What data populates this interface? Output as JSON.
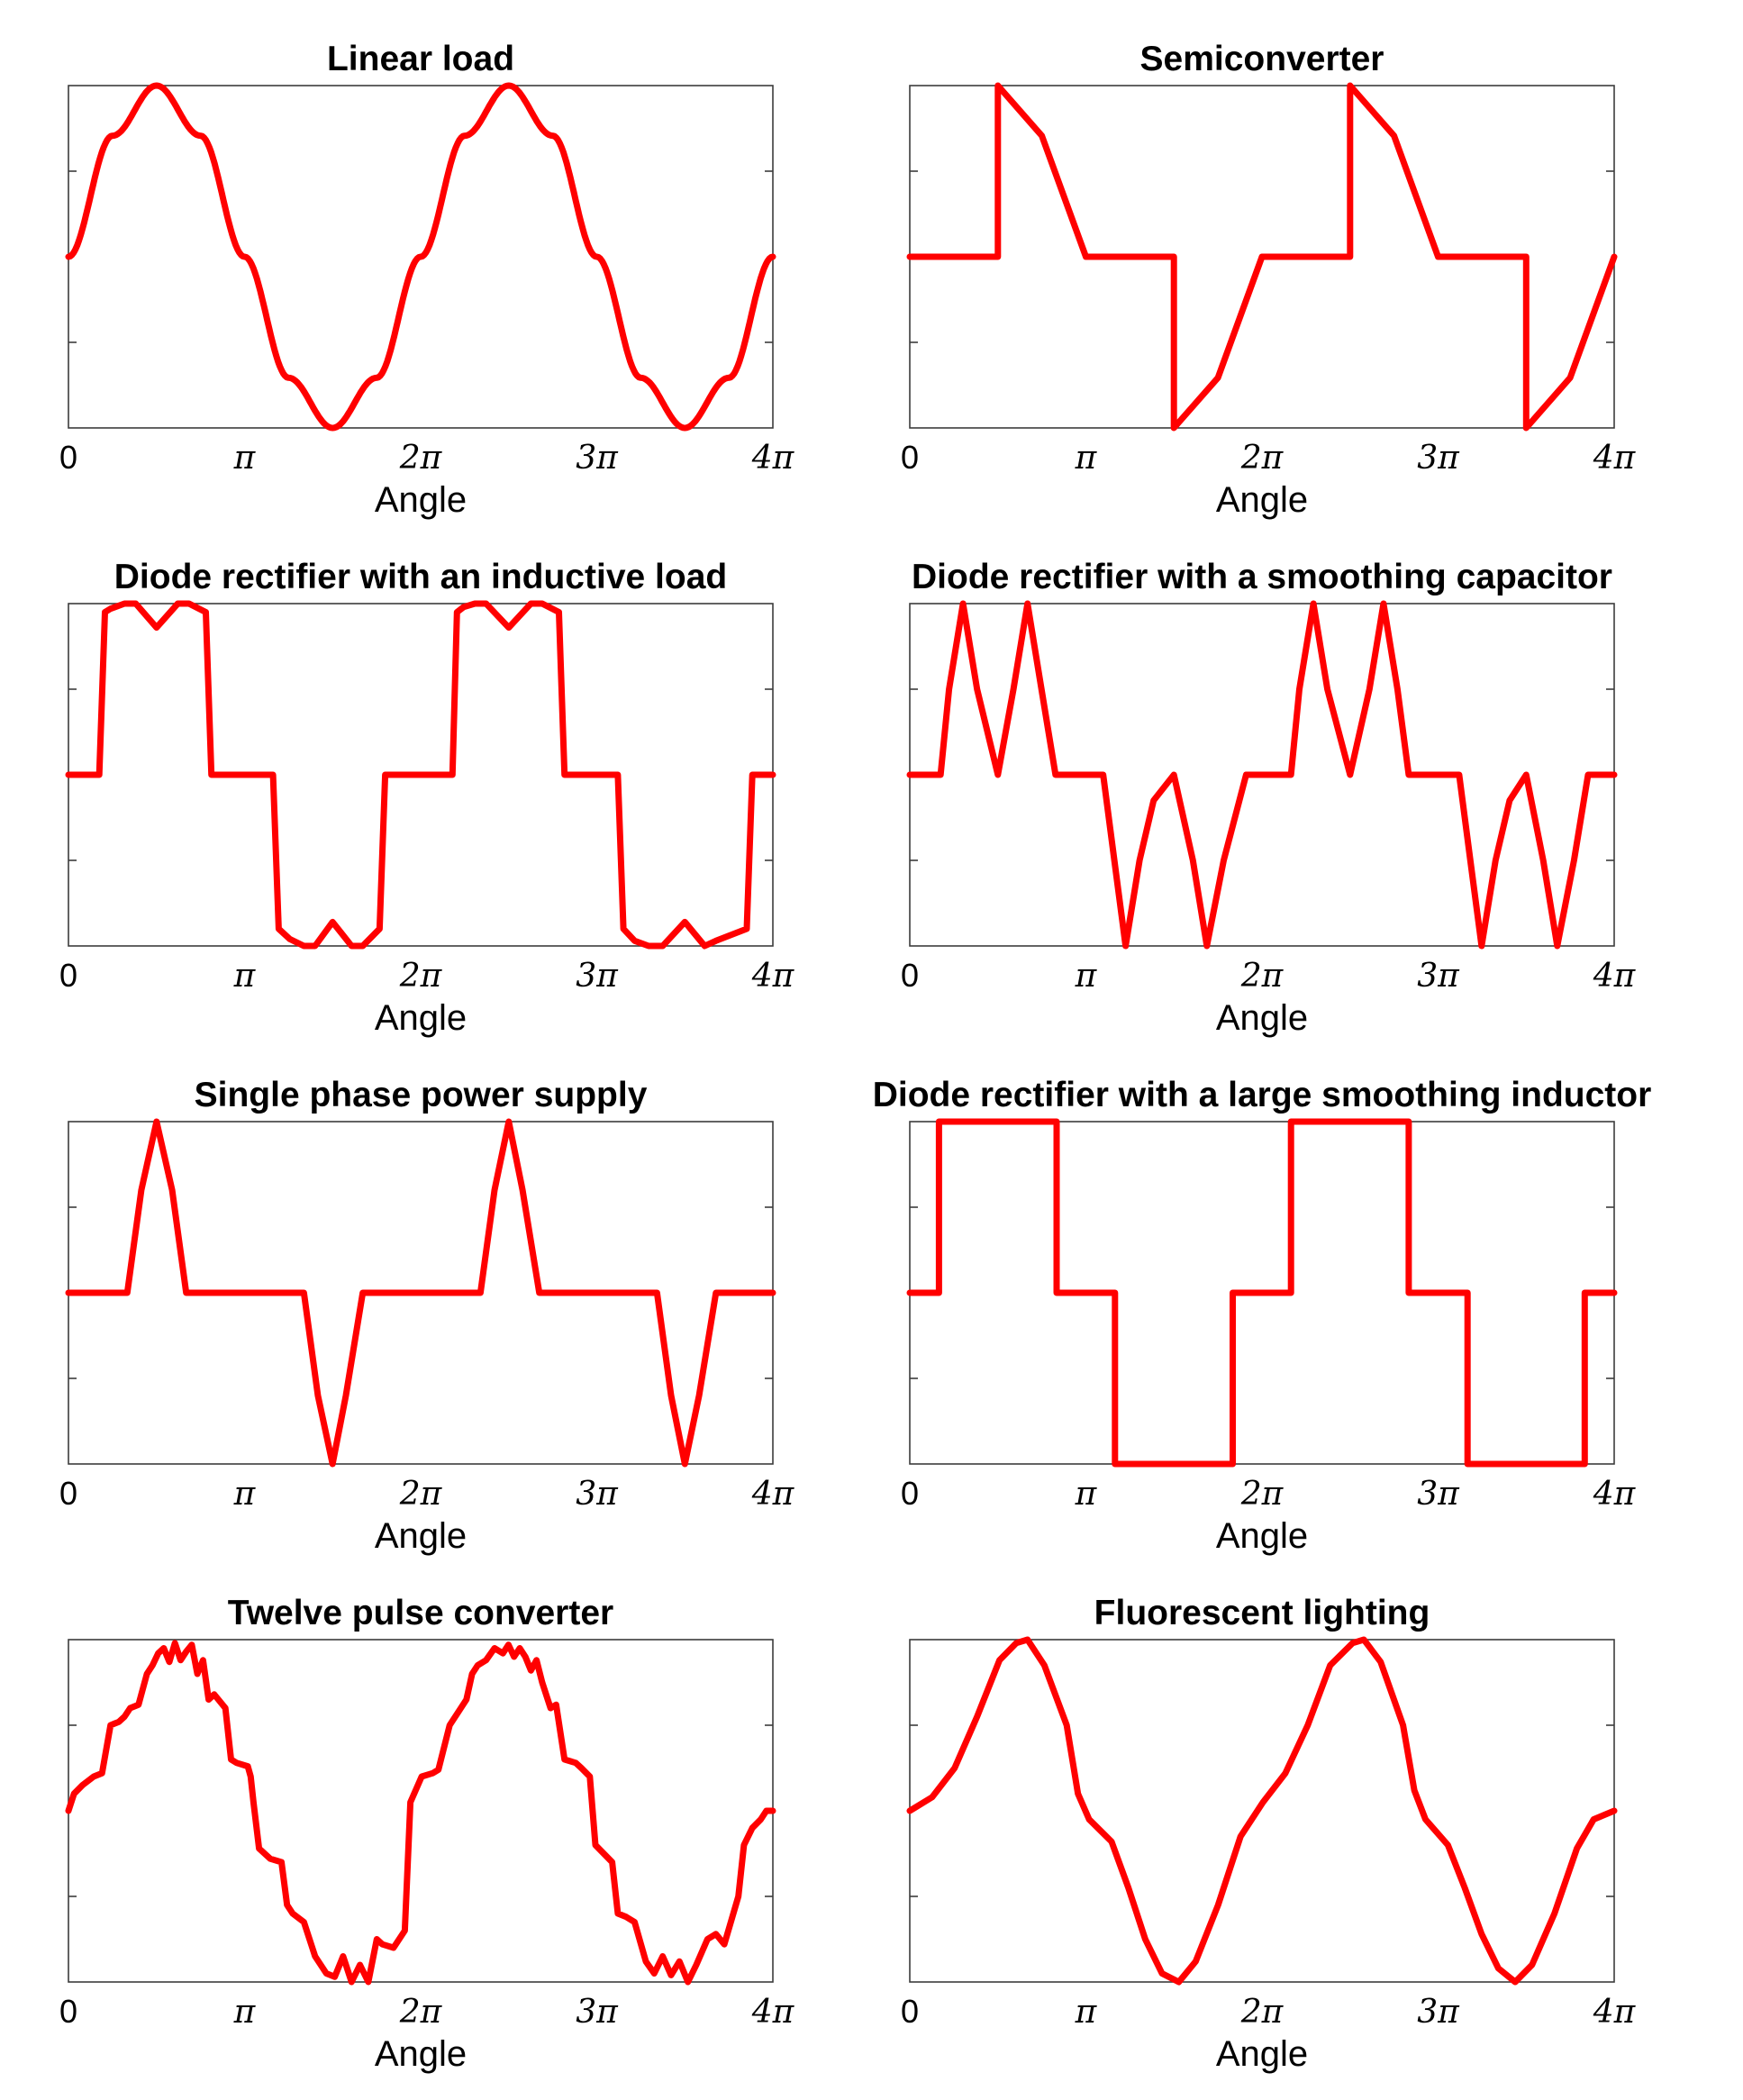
{
  "chart_data": [
    {
      "type": "line",
      "title": "Linear load",
      "xlabel": "Angle",
      "xlim": [
        0,
        12.566
      ],
      "ylim": [
        -1,
        1
      ],
      "xticks": [
        "0",
        "π",
        "2π",
        "3π",
        "4π"
      ],
      "series": [
        {
          "color": "#ff0000",
          "x_step": 0.7854,
          "y": [
            0,
            0.707,
            1,
            0.707,
            0,
            -0.707,
            -1,
            -0.707,
            0,
            0.707,
            1,
            0.707,
            0,
            -0.707,
            -1,
            -0.707,
            0
          ]
        }
      ]
    },
    {
      "type": "line",
      "title": "Semiconverter",
      "xlabel": "Angle",
      "xlim": [
        0,
        12.566
      ],
      "ylim": [
        -1,
        1
      ],
      "xticks": [
        "0",
        "π",
        "2π",
        "3π",
        "4π"
      ],
      "series": [
        {
          "color": "#ff0000",
          "x": [
            0,
            1.571,
            1.571,
            2.356,
            3.142,
            4.712,
            4.712,
            5.498,
            6.283,
            7.854,
            7.854,
            8.639,
            9.425,
            10.996,
            10.996,
            11.781,
            12.566
          ],
          "y": [
            0,
            0,
            1,
            0.707,
            0,
            0,
            -1,
            -0.707,
            0,
            0,
            1,
            0.707,
            0,
            0,
            -1,
            -0.707,
            0
          ]
        }
      ]
    },
    {
      "type": "line",
      "title": "Diode rectifier with an inductive load",
      "xlabel": "Angle",
      "xlim": [
        0,
        12.566
      ],
      "ylim": [
        -1,
        1
      ],
      "xticks": [
        "0",
        "π",
        "2π",
        "3π",
        "4π"
      ],
      "series": [
        {
          "color": "#ff0000",
          "x": [
            0,
            0.55,
            0.65,
            0.75,
            1.0,
            1.2,
            1.571,
            1.95,
            2.15,
            2.45,
            2.55,
            3.65,
            3.75,
            3.95,
            4.2,
            4.4,
            4.712,
            5.05,
            5.25,
            5.55,
            5.65,
            6.85,
            6.93,
            7.05,
            7.25,
            7.45,
            7.854,
            8.25,
            8.45,
            8.75,
            8.85,
            9.8,
            9.9,
            10.1,
            10.35,
            10.6,
            10.996,
            11.35,
            11.55,
            12.1,
            12.2,
            12.566
          ],
          "y": [
            0,
            0,
            0.95,
            0.97,
            1.0,
            1.0,
            0.86,
            1.0,
            1.0,
            0.95,
            0,
            0,
            -0.9,
            -0.96,
            -1.0,
            -1.0,
            -0.86,
            -1.0,
            -1.0,
            -0.9,
            0,
            0,
            0.95,
            0.98,
            1.0,
            1.0,
            0.86,
            1.0,
            1.0,
            0.95,
            0,
            0,
            -0.9,
            -0.97,
            -1.0,
            -1.0,
            -0.86,
            -1.0,
            -0.97,
            -0.9,
            0,
            0
          ]
        }
      ]
    },
    {
      "type": "line",
      "title": "Diode rectifier with a smoothing capacitor",
      "xlabel": "Angle",
      "xlim": [
        0,
        12.566
      ],
      "ylim": [
        -1,
        1
      ],
      "xticks": [
        "0",
        "π",
        "2π",
        "3π",
        "4π"
      ],
      "series": [
        {
          "color": "#ff0000",
          "x": [
            0,
            0.55,
            0.7,
            0.95,
            1.2,
            1.571,
            1.85,
            2.1,
            2.35,
            2.6,
            3.45,
            3.65,
            3.85,
            4.1,
            4.35,
            4.712,
            5.05,
            5.3,
            5.6,
            6.0,
            6.8,
            6.95,
            7.2,
            7.45,
            7.854,
            8.2,
            8.45,
            8.7,
            8.9,
            9.8,
            10.0,
            10.2,
            10.45,
            10.7,
            10.996,
            11.3,
            11.55,
            11.85,
            12.1,
            12.566
          ],
          "y": [
            0,
            0,
            0.5,
            1.0,
            0.5,
            0,
            0.5,
            1.0,
            0.5,
            0,
            0,
            -0.5,
            -1.0,
            -0.5,
            -0.15,
            0,
            -0.5,
            -1.0,
            -0.5,
            0,
            0,
            0.5,
            1.0,
            0.5,
            0,
            0.5,
            1.0,
            0.5,
            0,
            0,
            -0.5,
            -1.0,
            -0.5,
            -0.15,
            0,
            -0.5,
            -1.0,
            -0.5,
            0,
            0
          ]
        }
      ]
    },
    {
      "type": "line",
      "title": "Single phase power supply",
      "xlabel": "Angle",
      "xlim": [
        0,
        12.566
      ],
      "ylim": [
        -1,
        1
      ],
      "xticks": [
        "0",
        "π",
        "2π",
        "3π",
        "4π"
      ],
      "series": [
        {
          "color": "#ff0000",
          "x": [
            0,
            1.05,
            1.3,
            1.571,
            1.85,
            2.1,
            3.3,
            4.2,
            4.45,
            4.712,
            4.95,
            5.25,
            7.35,
            7.6,
            7.854,
            8.1,
            8.4,
            9.6,
            10.5,
            10.75,
            10.996,
            11.25,
            11.55,
            12.566
          ],
          "y": [
            0,
            0,
            0.6,
            1.0,
            0.6,
            0,
            0,
            0,
            -0.6,
            -1.0,
            -0.6,
            0,
            0,
            0.6,
            1.0,
            0.6,
            0,
            0,
            0,
            -0.6,
            -1.0,
            -0.6,
            0,
            0
          ]
        }
      ]
    },
    {
      "type": "line",
      "title": "Diode rectifier with a large smoothing inductor",
      "xlabel": "Angle",
      "xlim": [
        0,
        12.566
      ],
      "ylim": [
        -1,
        1
      ],
      "xticks": [
        "0",
        "π",
        "2π",
        "3π",
        "4π"
      ],
      "series": [
        {
          "color": "#ff0000",
          "x": [
            0,
            0.52,
            0.52,
            2.62,
            2.62,
            3.66,
            3.66,
            5.76,
            5.76,
            6.8,
            6.8,
            8.9,
            8.9,
            9.95,
            9.95,
            12.04,
            12.04,
            12.566
          ],
          "y": [
            0,
            0,
            1,
            1,
            0,
            0,
            -1,
            -1,
            0,
            0,
            1,
            1,
            0,
            0,
            -1,
            -1,
            0,
            0
          ]
        }
      ]
    },
    {
      "type": "line",
      "title": "Twelve pulse converter",
      "xlabel": "Angle",
      "xlim": [
        0,
        12.566
      ],
      "ylim": [
        -1,
        1
      ],
      "xticks": [
        "0",
        "π",
        "2π",
        "3π",
        "4π"
      ],
      "series": [
        {
          "color": "#ff0000",
          "x": [
            0,
            0.1,
            0.25,
            0.45,
            0.6,
            0.75,
            0.9,
            1.0,
            1.1,
            1.25,
            1.4,
            1.5,
            1.6,
            1.7,
            1.8,
            1.9,
            2.0,
            2.1,
            2.2,
            2.3,
            2.4,
            2.5,
            2.6,
            2.8,
            2.9,
            3.0,
            3.2,
            3.25,
            3.3,
            3.4,
            3.6,
            3.8,
            3.9,
            4.0,
            4.2,
            4.4,
            4.6,
            4.75,
            4.9,
            5.05,
            5.2,
            5.35,
            5.5,
            5.6,
            5.8,
            6.0,
            6.1,
            6.3,
            6.5,
            6.6,
            6.8,
            6.9,
            7.0,
            7.1,
            7.2,
            7.3,
            7.45,
            7.6,
            7.75,
            7.85,
            7.95,
            8.05,
            8.15,
            8.25,
            8.35,
            8.45,
            8.6,
            8.7,
            8.85,
            9.05,
            9.15,
            9.3,
            9.4,
            9.55,
            9.7,
            9.8,
            9.95,
            10.1,
            10.3,
            10.45,
            10.6,
            10.75,
            10.9,
            11.05,
            11.2,
            11.4,
            11.55,
            11.7,
            11.95,
            12.05,
            12.2,
            12.35,
            12.45,
            12.566
          ],
          "y": [
            0,
            0.1,
            0.15,
            0.2,
            0.22,
            0.5,
            0.52,
            0.55,
            0.6,
            0.62,
            0.8,
            0.85,
            0.92,
            0.95,
            0.87,
            0.98,
            0.88,
            0.93,
            0.97,
            0.8,
            0.88,
            0.65,
            0.68,
            0.6,
            0.3,
            0.28,
            0.26,
            0.2,
            0.05,
            -0.22,
            -0.28,
            -0.3,
            -0.55,
            -0.6,
            -0.65,
            -0.85,
            -0.95,
            -0.97,
            -0.85,
            -1.0,
            -0.9,
            -1.0,
            -0.75,
            -0.78,
            -0.8,
            -0.7,
            0.05,
            0.2,
            0.22,
            0.24,
            0.5,
            0.55,
            0.6,
            0.65,
            0.8,
            0.85,
            0.88,
            0.95,
            0.92,
            0.97,
            0.9,
            0.95,
            0.9,
            0.82,
            0.88,
            0.75,
            0.6,
            0.62,
            0.3,
            0.28,
            0.25,
            0.2,
            -0.2,
            -0.25,
            -0.3,
            -0.6,
            -0.62,
            -0.65,
            -0.88,
            -0.95,
            -0.85,
            -0.96,
            -0.88,
            -1.0,
            -0.9,
            -0.75,
            -0.72,
            -0.78,
            -0.5,
            -0.2,
            -0.1,
            -0.05,
            0.0,
            0.0
          ]
        }
      ]
    },
    {
      "type": "line",
      "title": "Fluorescent lighting",
      "xlabel": "Angle",
      "xlim": [
        0,
        12.566
      ],
      "ylim": [
        -1,
        1
      ],
      "xticks": [
        "0",
        "π",
        "2π",
        "3π",
        "4π"
      ],
      "series": [
        {
          "color": "#ff0000",
          "x": [
            0,
            0.4,
            0.8,
            1.2,
            1.6,
            1.9,
            2.1,
            2.4,
            2.8,
            3.0,
            3.2,
            3.6,
            3.9,
            4.2,
            4.5,
            4.8,
            5.1,
            5.5,
            5.9,
            6.3,
            6.7,
            7.1,
            7.5,
            7.9,
            8.1,
            8.4,
            8.8,
            9.0,
            9.2,
            9.6,
            9.9,
            10.2,
            10.5,
            10.8,
            11.1,
            11.5,
            11.9,
            12.2,
            12.566
          ],
          "y": [
            0,
            0.08,
            0.25,
            0.55,
            0.88,
            0.98,
            1.0,
            0.85,
            0.5,
            0.1,
            -0.05,
            -0.18,
            -0.45,
            -0.75,
            -0.95,
            -1.0,
            -0.88,
            -0.55,
            -0.15,
            0.05,
            0.22,
            0.5,
            0.85,
            0.98,
            1.0,
            0.87,
            0.5,
            0.12,
            -0.05,
            -0.2,
            -0.45,
            -0.72,
            -0.92,
            -1.0,
            -0.9,
            -0.6,
            -0.22,
            -0.05,
            0.0
          ]
        }
      ]
    }
  ]
}
